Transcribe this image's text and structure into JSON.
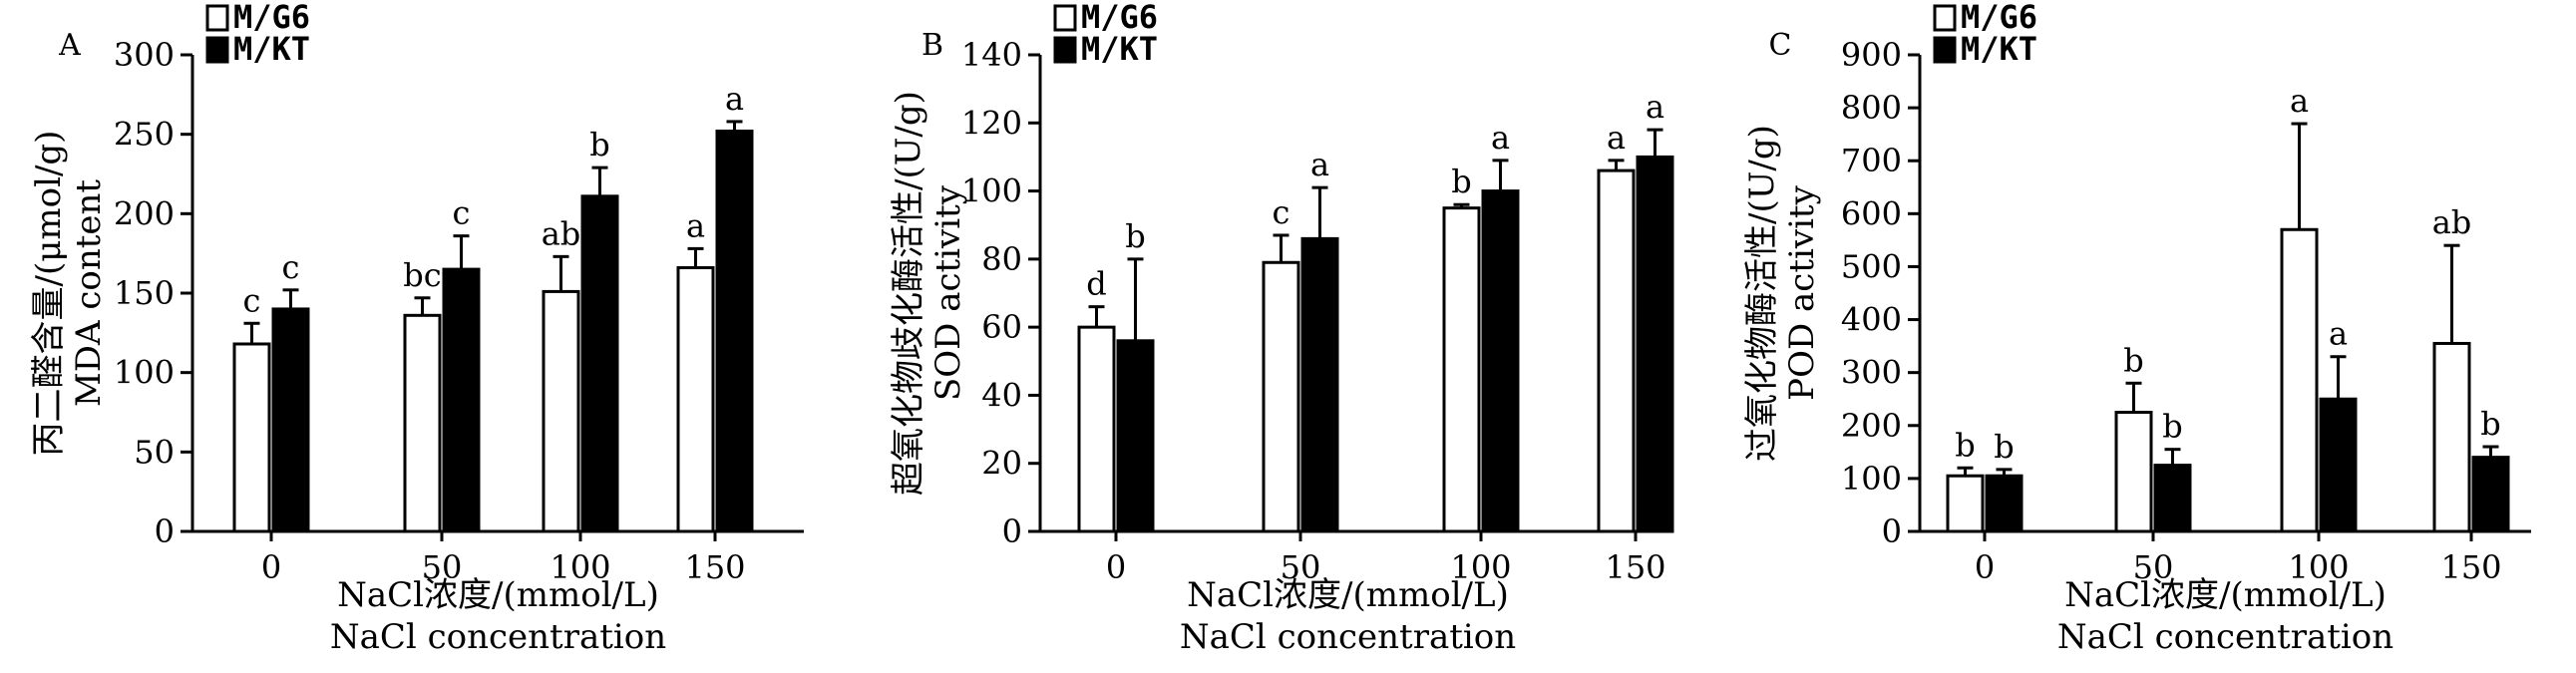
{
  "chart_data": [
    {
      "type": "bar",
      "panel": "A",
      "categories": [
        "0",
        "50",
        "100",
        "150"
      ],
      "series": [
        {
          "name": "M/G6",
          "values": [
            118,
            136,
            151,
            166
          ],
          "errors": [
            13,
            11,
            22,
            12
          ],
          "sig": [
            "c",
            "bc",
            "ab",
            "a"
          ]
        },
        {
          "name": "M/KT",
          "values": [
            140,
            165,
            211,
            252
          ],
          "errors": [
            12,
            21,
            18,
            6
          ],
          "sig": [
            "c",
            "c",
            "b",
            "a"
          ]
        }
      ],
      "ylabel_cn": "丙二醛含量/(μmol/g)",
      "ylabel_en": "MDA content",
      "xlabel_cn": "NaCl浓度/(mmol/L)",
      "xlabel_en": "NaCl concentration",
      "ylim": [
        0,
        300
      ],
      "yticks": [
        0,
        50,
        100,
        150,
        200,
        250,
        300
      ],
      "legend": "top-left"
    },
    {
      "type": "bar",
      "panel": "B",
      "categories": [
        "0",
        "50",
        "100",
        "150"
      ],
      "series": [
        {
          "name": "M/G6",
          "values": [
            60,
            79,
            95,
            106
          ],
          "errors": [
            6,
            8,
            1,
            3
          ],
          "sig": [
            "d",
            "c",
            "b",
            "a"
          ]
        },
        {
          "name": "M/KT",
          "values": [
            56,
            86,
            100,
            110
          ],
          "errors": [
            24,
            15,
            9,
            8
          ],
          "sig": [
            "b",
            "a",
            "a",
            "a"
          ]
        }
      ],
      "ylabel_cn": "超氧化物歧化酶活性/(U/g)",
      "ylabel_en": "SOD activity",
      "xlabel_cn": "NaCl浓度/(mmol/L)",
      "xlabel_en": "NaCl concentration",
      "ylim": [
        0,
        140
      ],
      "yticks": [
        0,
        20,
        40,
        60,
        80,
        100,
        120,
        140
      ],
      "legend": "top-left"
    },
    {
      "type": "bar",
      "panel": "C",
      "categories": [
        "0",
        "50",
        "100",
        "150"
      ],
      "series": [
        {
          "name": "M/G6",
          "values": [
            105,
            225,
            570,
            355
          ],
          "errors": [
            15,
            55,
            200,
            185
          ],
          "sig": [
            "b",
            "b",
            "a",
            "ab"
          ]
        },
        {
          "name": "M/KT",
          "values": [
            105,
            125,
            250,
            140
          ],
          "errors": [
            12,
            30,
            80,
            20
          ],
          "sig": [
            "b",
            "b",
            "a",
            "b"
          ]
        }
      ],
      "ylabel_cn": "过氧化物酶活性/(U/g)",
      "ylabel_en": "POD activity",
      "xlabel_cn": "NaCl浓度/(mmol/L)",
      "xlabel_en": "NaCl concentration",
      "ylim": [
        0,
        900
      ],
      "yticks": [
        0,
        100,
        200,
        300,
        400,
        500,
        600,
        700,
        800,
        900
      ],
      "legend": "top-left"
    }
  ],
  "colors": {
    "series": [
      "#ffffff",
      "#000000"
    ],
    "stroke": "#000000"
  }
}
